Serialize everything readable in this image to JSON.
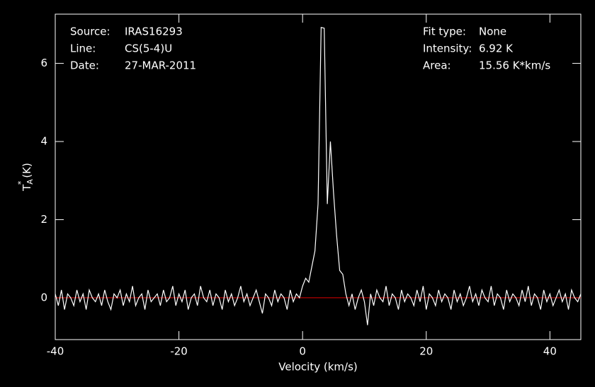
{
  "chart_data": {
    "type": "line",
    "x_label": "Velocity (km/s)",
    "y_label": {
      "main": "T",
      "sub": "A",
      "sup": "*",
      "unit": "(K)"
    },
    "info_left": [
      [
        "Source:",
        "IRAS16293"
      ],
      [
        "Line:",
        "CS(5-4)U"
      ],
      [
        "Date:",
        "27-MAR-2011"
      ]
    ],
    "info_right": [
      [
        "Fit type:",
        "None"
      ],
      [
        "Intensity:",
        "6.92 K"
      ],
      [
        "Area:",
        "15.56 K*km/s"
      ]
    ],
    "xlim": [
      -40,
      45
    ],
    "ylim": [
      -1.07,
      7.26
    ],
    "xticks": [
      -40,
      -20,
      0,
      20,
      40
    ],
    "yticks": [
      0,
      2,
      4,
      6
    ],
    "baseline": 0,
    "baseline_color": "#e00000",
    "series": [
      {
        "color": "#ffffff",
        "x": [
          -40,
          -39.5,
          -39,
          -38.5,
          -38,
          -37.5,
          -37,
          -36.5,
          -36,
          -35.5,
          -35,
          -34.5,
          -34,
          -33.5,
          -33,
          -32.5,
          -32,
          -31.5,
          -31,
          -30.5,
          -30,
          -29.5,
          -29,
          -28.5,
          -28,
          -27.5,
          -27,
          -26.5,
          -26,
          -25.5,
          -25,
          -24.5,
          -24,
          -23.5,
          -23,
          -22.5,
          -22,
          -21.5,
          -21,
          -20.5,
          -20,
          -19.5,
          -19,
          -18.5,
          -18,
          -17.5,
          -17,
          -16.5,
          -16,
          -15.5,
          -15,
          -14.5,
          -14,
          -13.5,
          -13,
          -12.5,
          -12,
          -11.5,
          -11,
          -10.5,
          -10,
          -9.5,
          -9,
          -8.5,
          -8,
          -7.5,
          -7,
          -6.5,
          -6,
          -5.5,
          -5,
          -4.5,
          -4,
          -3.5,
          -3,
          -2.5,
          -2,
          -1.5,
          -1,
          -0.5,
          0,
          0.5,
          1,
          1.5,
          2,
          2.5,
          3,
          3.5,
          4,
          4.5,
          5,
          5.5,
          6,
          6.5,
          7,
          7.5,
          8,
          8.5,
          9,
          9.5,
          10,
          10.5,
          11,
          11.5,
          12,
          12.5,
          13,
          13.5,
          14,
          14.5,
          15,
          15.5,
          16,
          16.5,
          17,
          17.5,
          18,
          18.5,
          19,
          19.5,
          20,
          20.5,
          21,
          21.5,
          22,
          22.5,
          23,
          23.5,
          24,
          24.5,
          25,
          25.5,
          26,
          26.5,
          27,
          27.5,
          28,
          28.5,
          29,
          29.5,
          30,
          30.5,
          31,
          31.5,
          32,
          32.5,
          33,
          33.5,
          34,
          34.5,
          35,
          35.5,
          36,
          36.5,
          37,
          37.5,
          38,
          38.5,
          39,
          39.5,
          40,
          40.5,
          41,
          41.5,
          42,
          42.5,
          43,
          43.5,
          44,
          44.5,
          45
        ],
        "values": [
          0.1,
          -0.2,
          0.2,
          -0.3,
          0.1,
          0.0,
          -0.2,
          0.2,
          -0.1,
          0.1,
          -0.3,
          0.2,
          0.0,
          -0.1,
          0.1,
          -0.2,
          0.2,
          -0.1,
          -0.3,
          0.1,
          0.0,
          0.2,
          -0.2,
          0.1,
          -0.1,
          0.3,
          -0.2,
          0.0,
          0.1,
          -0.3,
          0.2,
          -0.1,
          0.0,
          0.1,
          -0.2,
          0.2,
          -0.1,
          0.0,
          0.3,
          -0.2,
          0.1,
          -0.1,
          0.2,
          -0.3,
          0.0,
          0.1,
          -0.2,
          0.3,
          0.0,
          -0.1,
          0.2,
          -0.2,
          0.1,
          0.0,
          -0.3,
          0.2,
          -0.1,
          0.1,
          -0.2,
          0.0,
          0.3,
          -0.1,
          0.1,
          -0.2,
          0.0,
          0.2,
          -0.1,
          -0.4,
          0.1,
          0.0,
          -0.2,
          0.2,
          -0.1,
          0.1,
          0.0,
          -0.3,
          0.2,
          -0.1,
          0.1,
          0.0,
          0.3,
          0.5,
          0.4,
          0.8,
          1.2,
          2.4,
          6.92,
          6.9,
          2.4,
          4.0,
          2.7,
          1.6,
          0.7,
          0.6,
          0.1,
          -0.2,
          0.1,
          -0.3,
          0.0,
          0.2,
          -0.1,
          -0.7,
          0.1,
          -0.2,
          0.2,
          0.0,
          -0.1,
          0.3,
          -0.2,
          0.1,
          0.0,
          -0.3,
          0.2,
          -0.1,
          0.1,
          0.0,
          -0.2,
          0.2,
          -0.1,
          0.3,
          -0.3,
          0.1,
          0.0,
          -0.2,
          0.2,
          -0.1,
          0.1,
          0.0,
          -0.3,
          0.2,
          -0.1,
          0.1,
          -0.2,
          0.0,
          0.3,
          -0.1,
          0.1,
          -0.2,
          0.2,
          0.0,
          -0.1,
          0.3,
          -0.2,
          0.1,
          0.0,
          -0.3,
          0.2,
          -0.1,
          0.1,
          0.0,
          -0.2,
          0.2,
          -0.1,
          0.3,
          -0.2,
          0.1,
          0.0,
          -0.3,
          0.2,
          -0.1,
          0.1,
          -0.2,
          0.0,
          0.2,
          -0.1,
          0.1,
          -0.3,
          0.2,
          0.0,
          -0.1,
          0.1
        ]
      }
    ]
  }
}
